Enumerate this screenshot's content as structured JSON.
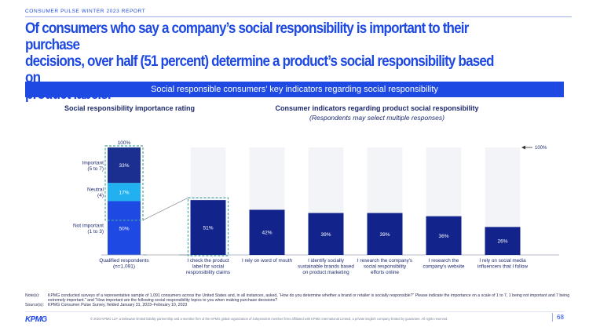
{
  "header": {
    "kicker": "CONSUMER PULSE WINTER 2023 REPORT",
    "headline_line1": "Of consumers who say a company’s social responsibility is important to their purchase",
    "headline_line2": "decisions, over half (51 percent) determine a product’s social responsibility based on",
    "headline_line3": "product labels.",
    "banner": "Social responsible consumers’ key indicators regarding social responsibility"
  },
  "colors": {
    "accent": "#1e49e2",
    "navy": "#1e2a6e",
    "dark_bar": "#12248c",
    "important": "#1a2f8f",
    "neutral": "#22b1f0",
    "not_important": "#1e49e2",
    "highlight_border": "#4aa8a0"
  },
  "chart_data": [
    {
      "type": "bar",
      "stacked": true,
      "title": "Social responsibility importance rating",
      "categories": [
        "Qualified respondents\n(n=1,091)"
      ],
      "top_label": "100%",
      "series": [
        {
          "name": "Not important\n(1 to 3)",
          "values": [
            50
          ],
          "label": "50%"
        },
        {
          "name": "Neutral\n(4)",
          "values": [
            17
          ],
          "label": "17%"
        },
        {
          "name": "Important\n(5 to 7)",
          "values": [
            33
          ],
          "label": "33%"
        }
      ],
      "ylim": [
        0,
        100
      ]
    },
    {
      "type": "bar",
      "title": "Consumer indicators regarding product social responsibility",
      "subtitle": "(Respondents may select multiple responses)",
      "reference_label": "100%",
      "categories": [
        "I check the product\nlabel for social\nresponsibility claims",
        "I rely on word of mouth",
        "I identify socially\nsustainable brands based\non product marketing",
        "I research the company's\nsocial responsibility\nefforts online",
        "I research the\ncompany's website",
        "I rely on social media\ninfluencers that I follow"
      ],
      "values": [
        51,
        42,
        39,
        39,
        36,
        26
      ],
      "labels": [
        "51%",
        "42%",
        "39%",
        "39%",
        "36%",
        "26%"
      ],
      "ylim": [
        0,
        100
      ],
      "highlight_index": 0
    }
  ],
  "notes": {
    "note_label": "Note(s):",
    "note_text": "KPMG conducted surveys of a representative sample of 1,091 consumers across the United States and, in all instances, asked, “How do you determine whether a brand or retailer is socially responsible?” Please indicate the importance on a scale of 1 to 7, 1 being not important and 7 being extremely important.” and “How important are the following social responsibility topics to you when making purchase decisions?",
    "source_label": "Source(s):",
    "source_text": "KPMG Consumer Pulse Survey, fielded January 31, 2023–February 10, 2023"
  },
  "footer": {
    "logo": "KPMG",
    "copyright": "© 2023 KPMG LLP, a Delaware limited liability partnership and a member firm of the KPMG global organization of independent member firms affiliated with KPMG International Limited, a private English company limited by guarantee. All rights reserved.",
    "page_number": "68"
  }
}
